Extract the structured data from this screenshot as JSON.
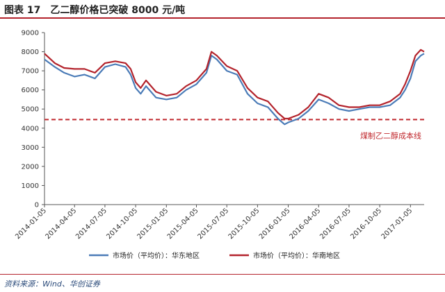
{
  "header": {
    "title": "图表 17　乙二醇价格已突破 8000 元/吨"
  },
  "footer": {
    "source": "资料来源：Wind、华创证券"
  },
  "chart_data": {
    "type": "line",
    "title": "图表 17　乙二醇价格已突破 8000 元/吨",
    "xlabel": "",
    "ylabel": "",
    "ylim": [
      0,
      9000
    ],
    "y_ticks": [
      "0",
      "1000",
      "2000",
      "3000",
      "4000",
      "5000",
      "6000",
      "7000",
      "8000",
      "9000"
    ],
    "x_ticks": [
      "2014-01-05",
      "2014-04-05",
      "2014-07-05",
      "2014-10-05",
      "2015-01-05",
      "2015-04-05",
      "2015-07-05",
      "2015-10-05",
      "2016-01-05",
      "2016-04-05",
      "2016-07-05",
      "2016-10-05",
      "2017-01-05"
    ],
    "x_range": [
      "2014-01-05",
      "2017-02-15"
    ],
    "grid": false,
    "legend_position": "bottom",
    "colors": {
      "east": "#4a7bb7",
      "south": "#b3222b",
      "cost": "#c0282d"
    },
    "series": [
      {
        "name": "市场价（平均价）：华东地区",
        "color": "#4a7bb7",
        "x": [
          "2014-01-05",
          "2014-02-05",
          "2014-03-05",
          "2014-04-05",
          "2014-05-05",
          "2014-06-05",
          "2014-07-05",
          "2014-08-05",
          "2014-09-05",
          "2014-09-20",
          "2014-10-05",
          "2014-10-20",
          "2014-11-05",
          "2014-12-05",
          "2015-01-05",
          "2015-02-05",
          "2015-03-05",
          "2015-04-05",
          "2015-05-05",
          "2015-05-20",
          "2015-06-05",
          "2015-07-05",
          "2015-08-05",
          "2015-09-05",
          "2015-10-05",
          "2015-11-05",
          "2015-12-05",
          "2015-12-25",
          "2016-01-05",
          "2016-02-05",
          "2016-03-05",
          "2016-04-05",
          "2016-05-05",
          "2016-06-05",
          "2016-07-05",
          "2016-08-05",
          "2016-09-05",
          "2016-10-05",
          "2016-11-05",
          "2016-12-05",
          "2016-12-20",
          "2017-01-05",
          "2017-01-20",
          "2017-02-05",
          "2017-02-15"
        ],
        "values": [
          7600,
          7200,
          6900,
          6700,
          6800,
          6600,
          7200,
          7350,
          7200,
          6800,
          6100,
          5800,
          6200,
          5600,
          5500,
          5600,
          6000,
          6300,
          6900,
          7800,
          7600,
          7000,
          6800,
          5800,
          5300,
          5100,
          4500,
          4200,
          4300,
          4500,
          4900,
          5500,
          5300,
          5000,
          4900,
          5000,
          5100,
          5100,
          5200,
          5600,
          6000,
          6600,
          7500,
          7800,
          7900
        ]
      },
      {
        "name": "市场价（平均价）：华南地区",
        "color": "#b3222b",
        "x": [
          "2014-01-05",
          "2014-02-05",
          "2014-03-05",
          "2014-04-05",
          "2014-05-05",
          "2014-06-05",
          "2014-07-05",
          "2014-08-05",
          "2014-09-05",
          "2014-09-20",
          "2014-10-05",
          "2014-10-20",
          "2014-11-05",
          "2014-12-05",
          "2015-01-05",
          "2015-02-05",
          "2015-03-05",
          "2015-04-05",
          "2015-05-05",
          "2015-05-20",
          "2015-06-05",
          "2015-07-05",
          "2015-08-05",
          "2015-09-05",
          "2015-10-05",
          "2015-11-05",
          "2015-12-05",
          "2015-12-25",
          "2016-01-05",
          "2016-02-05",
          "2016-03-05",
          "2016-04-05",
          "2016-05-05",
          "2016-06-05",
          "2016-07-05",
          "2016-08-05",
          "2016-09-05",
          "2016-10-05",
          "2016-11-05",
          "2016-12-05",
          "2016-12-20",
          "2017-01-05",
          "2017-01-20",
          "2017-02-05",
          "2017-02-15"
        ],
        "values": [
          7900,
          7400,
          7150,
          7100,
          7100,
          6900,
          7400,
          7500,
          7400,
          7100,
          6400,
          6100,
          6500,
          5900,
          5700,
          5800,
          6200,
          6500,
          7100,
          8000,
          7800,
          7250,
          7000,
          6100,
          5600,
          5400,
          4800,
          4500,
          4500,
          4700,
          5100,
          5800,
          5600,
          5200,
          5100,
          5100,
          5200,
          5200,
          5400,
          5800,
          6300,
          7000,
          7800,
          8100,
          8000
        ]
      }
    ],
    "reference_line": {
      "y": 4450,
      "label": "煤制乙二醇成本线",
      "style": "dashed"
    }
  }
}
